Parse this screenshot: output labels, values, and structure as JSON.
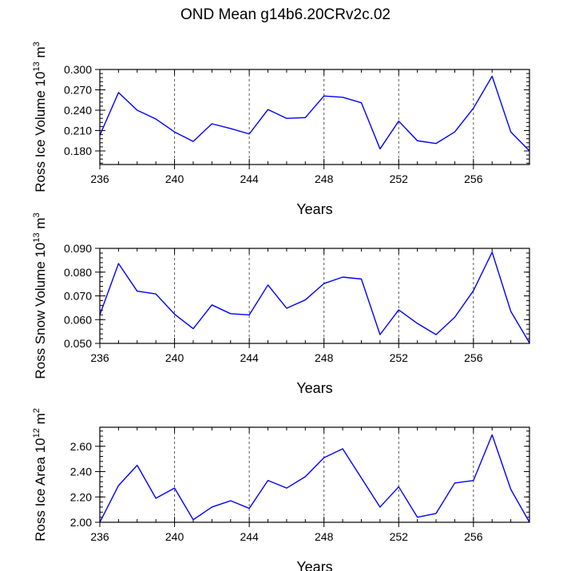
{
  "figure": {
    "title": "OND Mean g14b6.20CRv2c.02"
  },
  "colors": {
    "line": "#0000ff",
    "axis": "#000000",
    "grid": "#555555",
    "background": "#ffffff"
  },
  "chart_data": [
    {
      "type": "line",
      "title": "",
      "xlabel": "Years",
      "ylabel": "Ross Ice Volume 10^13 m^3",
      "ylabel_parts": {
        "base": "Ross Ice Volume 10",
        "exp1": "13",
        "mid": " m",
        "exp2": "3"
      },
      "x": [
        236,
        237,
        238,
        239,
        240,
        241,
        242,
        243,
        244,
        245,
        246,
        247,
        248,
        249,
        250,
        251,
        252,
        253,
        254,
        255,
        256,
        257,
        258,
        259
      ],
      "values": [
        0.203,
        0.266,
        0.24,
        0.227,
        0.208,
        0.194,
        0.22,
        0.213,
        0.205,
        0.241,
        0.228,
        0.229,
        0.261,
        0.259,
        0.251,
        0.183,
        0.224,
        0.195,
        0.191,
        0.208,
        0.243,
        0.29,
        0.208,
        0.18
      ],
      "xlim": [
        236,
        259
      ],
      "ylim": [
        0.16,
        0.3
      ],
      "xticks": [
        236,
        240,
        244,
        248,
        252,
        256
      ],
      "xtick_labels": [
        "236",
        "240",
        "244",
        "248",
        "252",
        "256"
      ],
      "yticks": [
        0.18,
        0.21,
        0.24,
        0.27,
        0.3
      ],
      "ytick_labels": [
        "0.180",
        "0.210",
        "0.240",
        "0.270",
        "0.300"
      ],
      "grid": "vertical dashed at major x ticks"
    },
    {
      "type": "line",
      "title": "",
      "xlabel": "Years",
      "ylabel": "Ross Snow Volume 10^13 m^3",
      "ylabel_parts": {
        "base": "Ross Snow Volume 10",
        "exp1": "13",
        "mid": " m",
        "exp2": "3"
      },
      "x": [
        236,
        237,
        238,
        239,
        240,
        241,
        242,
        243,
        244,
        245,
        246,
        247,
        248,
        249,
        250,
        251,
        252,
        253,
        254,
        255,
        256,
        257,
        258,
        259
      ],
      "values": [
        0.062,
        0.0836,
        0.072,
        0.0708,
        0.0623,
        0.0562,
        0.0662,
        0.0625,
        0.062,
        0.0746,
        0.0648,
        0.0683,
        0.0752,
        0.0779,
        0.0771,
        0.0537,
        0.0641,
        0.0584,
        0.0537,
        0.061,
        0.0722,
        0.0884,
        0.0635,
        0.0502
      ],
      "xlim": [
        236,
        259
      ],
      "ylim": [
        0.05,
        0.09
      ],
      "xticks": [
        236,
        240,
        244,
        248,
        252,
        256
      ],
      "xtick_labels": [
        "236",
        "240",
        "244",
        "248",
        "252",
        "256"
      ],
      "yticks": [
        0.05,
        0.06,
        0.07,
        0.08,
        0.09
      ],
      "ytick_labels": [
        "0.050",
        "0.060",
        "0.070",
        "0.080",
        "0.090"
      ],
      "grid": "vertical dashed at major x ticks"
    },
    {
      "type": "line",
      "title": "",
      "xlabel": "Years",
      "ylabel": "Ross Ice Area 10^12 m^2",
      "ylabel_parts": {
        "base": "Ross Ice Area 10",
        "exp1": "12",
        "mid": " m",
        "exp2": "2"
      },
      "x": [
        236,
        237,
        238,
        239,
        240,
        241,
        242,
        243,
        244,
        245,
        246,
        247,
        248,
        249,
        250,
        251,
        252,
        253,
        254,
        255,
        256,
        257,
        258,
        259
      ],
      "values": [
        2.0,
        2.29,
        2.45,
        2.19,
        2.27,
        2.02,
        2.12,
        2.17,
        2.11,
        2.33,
        2.27,
        2.36,
        2.51,
        2.58,
        2.35,
        2.12,
        2.28,
        2.04,
        2.07,
        2.31,
        2.33,
        2.69,
        2.26,
        2.0
      ],
      "xlim": [
        236,
        259
      ],
      "ylim": [
        2.0,
        2.75
      ],
      "xticks": [
        236,
        240,
        244,
        248,
        252,
        256
      ],
      "xtick_labels": [
        "236",
        "240",
        "244",
        "248",
        "252",
        "256"
      ],
      "yticks": [
        2.0,
        2.2,
        2.4,
        2.6
      ],
      "ytick_labels": [
        "2.00",
        "2.20",
        "2.40",
        "2.60"
      ],
      "grid": "vertical dashed at major x ticks"
    }
  ]
}
